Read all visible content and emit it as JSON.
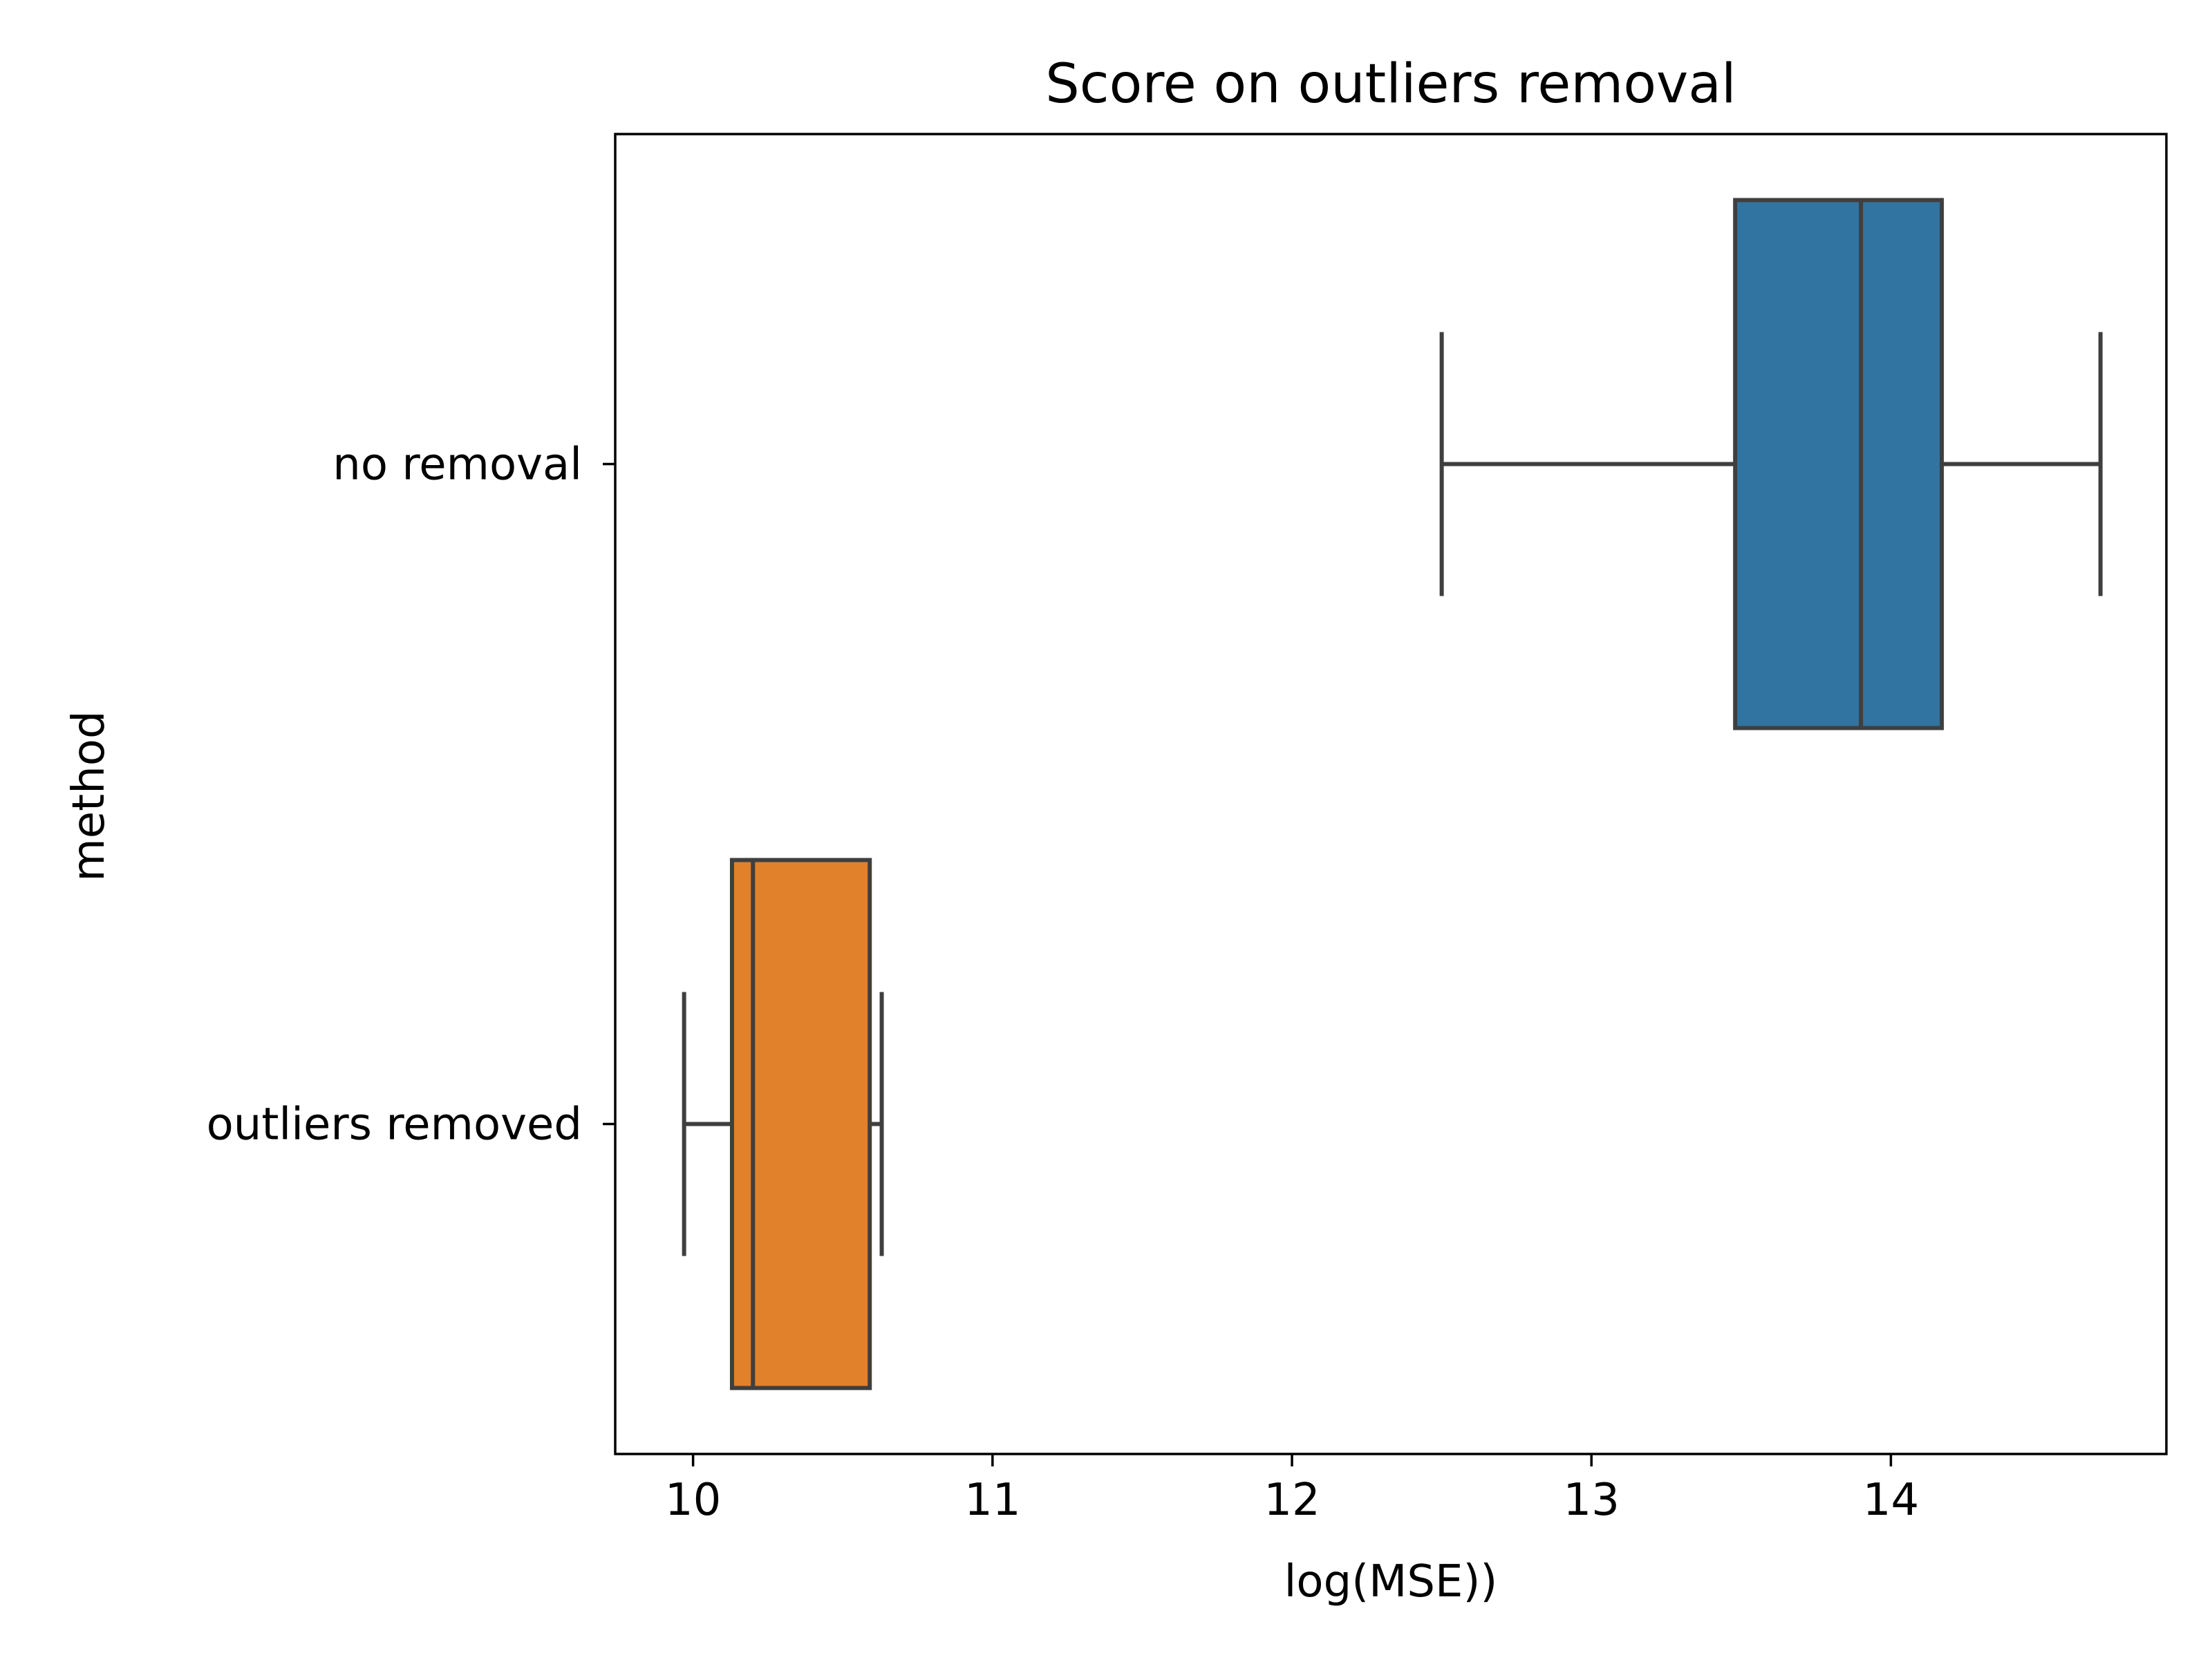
{
  "chart_data": {
    "type": "boxplot",
    "title": "Score on outliers removal",
    "xlabel": "log(MSE))",
    "ylabel": "method",
    "orientation": "horizontal",
    "xlim": [
      9.74,
      14.92
    ],
    "xticks": [
      10,
      11,
      12,
      13,
      14
    ],
    "xtick_labels": [
      "10",
      "11",
      "12",
      "13",
      "14"
    ],
    "grid": false,
    "categories": [
      "no removal",
      "outliers removed"
    ],
    "boxes": [
      {
        "category": "no removal",
        "whisker_low": 12.5,
        "q1": 13.48,
        "median": 13.9,
        "q3": 14.17,
        "whisker_high": 14.7,
        "color": "#3274a1"
      },
      {
        "category": "outliers removed",
        "whisker_low": 9.97,
        "q1": 10.13,
        "median": 10.2,
        "q3": 10.59,
        "whisker_high": 10.63,
        "color": "#e1812c"
      }
    ],
    "line_color": "#3f3f3f"
  }
}
